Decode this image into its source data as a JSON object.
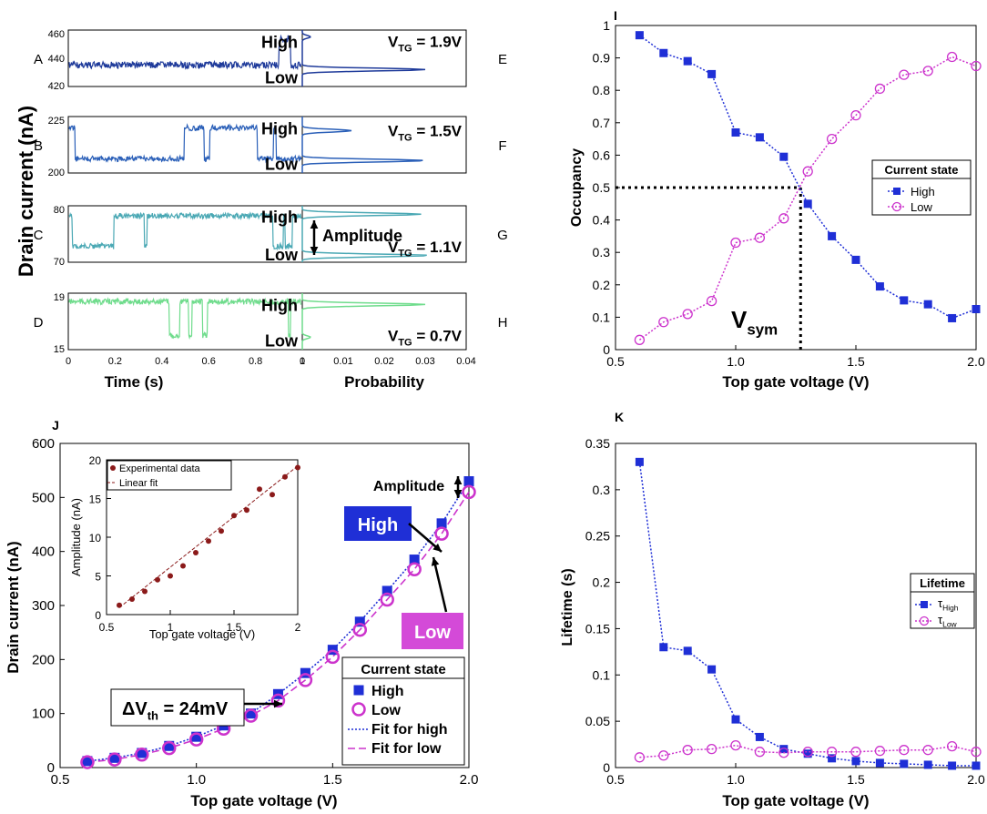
{
  "colors": {
    "high": "#1f2fd6",
    "low": "#cc33cc",
    "traceA": "#1e3a9a",
    "traceB": "#2a5fb8",
    "traceC": "#4aa8b4",
    "traceD": "#6fdc8c",
    "inset": "#8b1a1a",
    "black": "#000000"
  },
  "chart_data": [
    {
      "id": "A-D",
      "type": "line",
      "ylabel": "Drain current (nA)",
      "xlabel": "Time (s)",
      "xlim": [
        0,
        1
      ],
      "xticks": [
        "0",
        "0.2",
        "0.4",
        "0.6",
        "0.8",
        "1"
      ],
      "panels": [
        {
          "letter": "A",
          "ylim": [
            420,
            460
          ],
          "yticks": [
            "460",
            "440",
            "420"
          ]
        },
        {
          "letter": "B",
          "ylim": [
            200,
            225
          ],
          "yticks": [
            "225",
            "200"
          ]
        },
        {
          "letter": "C",
          "ylim": [
            70,
            80
          ],
          "yticks": [
            "80",
            "70"
          ]
        },
        {
          "letter": "D",
          "ylim": [
            15,
            19
          ],
          "yticks": [
            "19",
            "15"
          ]
        }
      ]
    },
    {
      "id": "E-H",
      "type": "line",
      "xlabel": "Probability",
      "xlim": [
        0,
        0.04
      ],
      "xticks": [
        "0",
        "0.01",
        "0.02",
        "0.03",
        "0.04"
      ],
      "panels": [
        {
          "letter": "E",
          "vtg": "1.9V",
          "high_peak": 0.002,
          "low_peak": 0.03
        },
        {
          "letter": "F",
          "vtg": "1.5V",
          "high_peak": 0.012,
          "low_peak": 0.03
        },
        {
          "letter": "G",
          "vtg": "1.1V",
          "high_peak": 0.029,
          "low_peak": 0.031
        },
        {
          "letter": "H",
          "vtg": "0.7V",
          "high_peak": 0.03,
          "low_peak": 0.002
        }
      ],
      "annotations": {
        "high": "High",
        "low": "Low",
        "amplitude": "Amplitude",
        "vtg_prefix": "V",
        "vtg_sub": "TG",
        "eq": " = "
      }
    },
    {
      "id": "I",
      "type": "line",
      "xlabel": "Top gate voltage (V)",
      "ylabel": "Occupancy",
      "xlim": [
        0.5,
        2.0
      ],
      "ylim": [
        0,
        1
      ],
      "xticks": [
        "0.5",
        "1.0",
        "1.5",
        "2.0"
      ],
      "yticks": [
        "0",
        "0.1",
        "0.2",
        "0.3",
        "0.4",
        "0.5",
        "0.6",
        "0.7",
        "0.8",
        "0.9",
        "1"
      ],
      "x": [
        0.6,
        0.7,
        0.8,
        0.9,
        1.0,
        1.1,
        1.2,
        1.3,
        1.4,
        1.5,
        1.6,
        1.7,
        1.8,
        1.9,
        2.0
      ],
      "series": [
        {
          "name": "High",
          "values": [
            0.97,
            0.915,
            0.89,
            0.85,
            0.67,
            0.655,
            0.595,
            0.45,
            0.35,
            0.277,
            0.195,
            0.152,
            0.14,
            0.097,
            0.125
          ]
        },
        {
          "name": "Low",
          "values": [
            0.03,
            0.085,
            0.11,
            0.15,
            0.33,
            0.345,
            0.405,
            0.55,
            0.65,
            0.723,
            0.805,
            0.848,
            0.86,
            0.903,
            0.875
          ]
        }
      ],
      "vsym": 1.27,
      "vsym_label": "V",
      "vsym_sub": "sym",
      "legend_title": "Current state"
    },
    {
      "id": "J",
      "type": "line",
      "xlabel": "Top gate voltage (V)",
      "ylabel": "Drain current (nA)",
      "xlim": [
        0.5,
        2.0
      ],
      "ylim": [
        0,
        600
      ],
      "xticks": [
        "0.5",
        "1.0",
        "1.5",
        "2.0"
      ],
      "yticks": [
        "0",
        "100",
        "200",
        "300",
        "400",
        "500",
        "600"
      ],
      "x": [
        0.6,
        0.7,
        0.8,
        0.9,
        1.0,
        1.1,
        1.2,
        1.3,
        1.4,
        1.5,
        1.6,
        1.7,
        1.8,
        1.9,
        2.0
      ],
      "series": [
        {
          "name": "High",
          "values": [
            12,
            18,
            27,
            40,
            57,
            78,
            100,
            136,
            175,
            218,
            270,
            327,
            385,
            452,
            530
          ]
        },
        {
          "name": "Low",
          "values": [
            10,
            15,
            24,
            36,
            52,
            72,
            96,
            124,
            162,
            205,
            255,
            311,
            367,
            433,
            510
          ]
        }
      ],
      "legend_title": "Current state",
      "legend": [
        "High",
        "Low",
        "Fit for high",
        "Fit for low"
      ],
      "annotations": {
        "delta_label": "ΔV",
        "delta_sub": "th",
        "delta_value": " = 24mV",
        "amplitude": "Amplitude",
        "high_box": "High",
        "low_box": "Low"
      },
      "inset": {
        "xlabel": "Top gate voltage (V)",
        "ylabel": "Amplitude (nA)",
        "xlim": [
          0.5,
          2.0
        ],
        "ylim": [
          0,
          20
        ],
        "xticks": [
          "0.5",
          "1",
          "1.5",
          "2"
        ],
        "yticks": [
          "0",
          "5",
          "10",
          "15",
          "20"
        ],
        "x": [
          0.6,
          0.7,
          0.8,
          0.9,
          1.0,
          1.1,
          1.2,
          1.3,
          1.4,
          1.5,
          1.6,
          1.7,
          1.8,
          1.9,
          2.0
        ],
        "values": [
          1.2,
          2.0,
          3.0,
          4.5,
          5.0,
          6.3,
          8.0,
          9.5,
          10.8,
          12.8,
          13.5,
          16.2,
          15.5,
          17.8,
          19.0
        ],
        "legend": [
          "Experimental data",
          "Linear fit"
        ]
      }
    },
    {
      "id": "K",
      "type": "line",
      "xlabel": "Top gate voltage (V)",
      "ylabel": "Lifetime (s)",
      "xlim": [
        0.5,
        2.0
      ],
      "ylim": [
        0,
        0.35
      ],
      "xticks": [
        "0.5",
        "1.0",
        "1.5",
        "2.0"
      ],
      "yticks": [
        "0",
        "0.05",
        "0.1",
        "0.15",
        "0.2",
        "0.25",
        "0.3",
        "0.35"
      ],
      "x": [
        0.6,
        0.7,
        0.8,
        0.9,
        1.0,
        1.1,
        1.2,
        1.3,
        1.4,
        1.5,
        1.6,
        1.7,
        1.8,
        1.9,
        2.0
      ],
      "series": [
        {
          "name": "τHigh",
          "values": [
            0.33,
            0.13,
            0.126,
            0.106,
            0.052,
            0.033,
            0.02,
            0.015,
            0.01,
            0.007,
            0.005,
            0.004,
            0.003,
            0.002,
            0.002
          ]
        },
        {
          "name": "τLow",
          "values": [
            0.011,
            0.013,
            0.019,
            0.02,
            0.024,
            0.017,
            0.016,
            0.017,
            0.017,
            0.017,
            0.018,
            0.019,
            0.019,
            0.023,
            0.017
          ]
        }
      ],
      "legend_title": "Lifetime",
      "legend_sym": "τ",
      "legend_subs": [
        "High",
        "Low"
      ]
    }
  ],
  "panel_labels": {
    "I": "I",
    "J": "J",
    "K": "K"
  }
}
